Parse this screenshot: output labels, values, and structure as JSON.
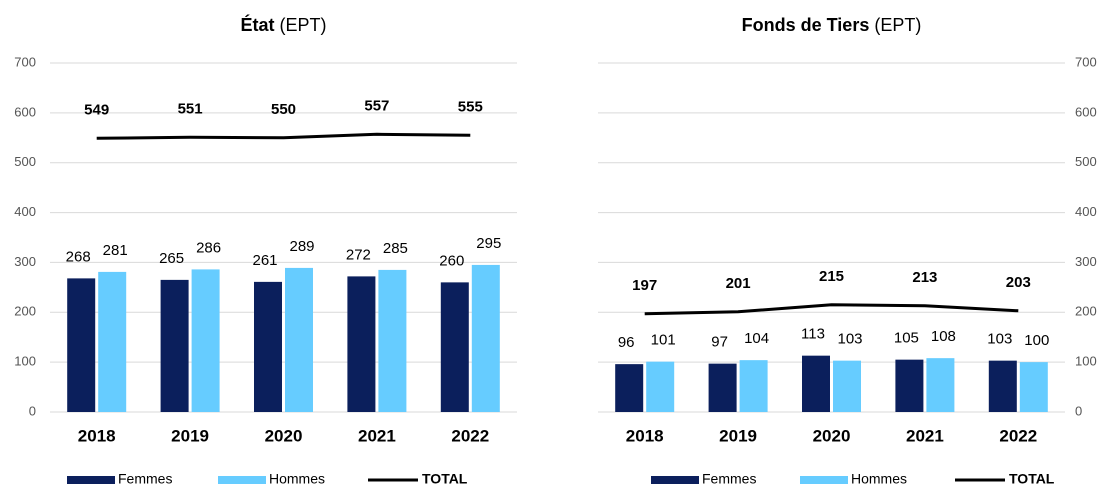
{
  "chart_data": [
    {
      "type": "bar",
      "title": "État",
      "title_unit": "(EPT)",
      "axis_side": "left",
      "grid": true,
      "categories": [
        "2018",
        "2019",
        "2020",
        "2021",
        "2022"
      ],
      "ylim": [
        0,
        700
      ],
      "yticks": [
        0,
        100,
        200,
        300,
        400,
        500,
        600,
        700
      ],
      "series": [
        {
          "name": "Femmes",
          "kind": "bar",
          "color": "#0b1f5c",
          "values": [
            268,
            265,
            261,
            272,
            260
          ]
        },
        {
          "name": "Hommes",
          "kind": "bar",
          "color": "#66ccff",
          "values": [
            281,
            286,
            289,
            285,
            295
          ]
        },
        {
          "name": "TOTAL",
          "kind": "line",
          "color": "#000000",
          "values": [
            549,
            551,
            550,
            557,
            555
          ]
        }
      ]
    },
    {
      "type": "bar",
      "title": "Fonds de Tiers",
      "title_unit": "(EPT)",
      "axis_side": "right",
      "grid": true,
      "categories": [
        "2018",
        "2019",
        "2020",
        "2021",
        "2022"
      ],
      "ylim": [
        0,
        700
      ],
      "yticks": [
        0,
        100,
        200,
        300,
        400,
        500,
        600,
        700
      ],
      "series": [
        {
          "name": "Femmes",
          "kind": "bar",
          "color": "#0b1f5c",
          "values": [
            96,
            97,
            113,
            105,
            103
          ]
        },
        {
          "name": "Hommes",
          "kind": "bar",
          "color": "#66ccff",
          "values": [
            101,
            104,
            103,
            108,
            100
          ]
        },
        {
          "name": "TOTAL",
          "kind": "line",
          "color": "#000000",
          "values": [
            197,
            201,
            215,
            213,
            203
          ]
        }
      ]
    }
  ]
}
